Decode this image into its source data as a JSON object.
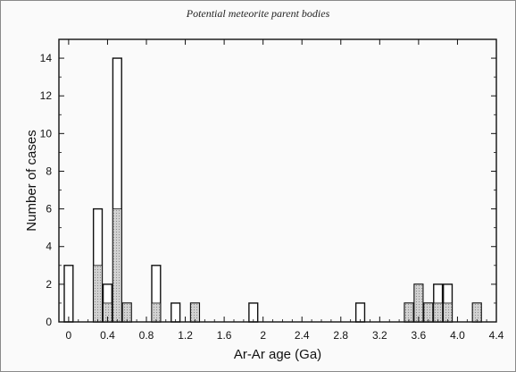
{
  "header": {
    "running_head": "Potential meteorite parent bodies"
  },
  "chart_data": {
    "type": "bar",
    "title": "",
    "xlabel": "Ar-Ar age (Ga)",
    "ylabel": "Number of cases",
    "xlim": [
      -0.1,
      4.4
    ],
    "ylim": [
      0,
      15
    ],
    "bin_width": 0.1,
    "x_ticks": [
      "0",
      "0.4",
      "0.8",
      "1.2",
      "1.6",
      "2",
      "2.4",
      "2.8",
      "3.2",
      "3.6",
      "4.0",
      "4.4"
    ],
    "x_tick_values": [
      0,
      0.4,
      0.8,
      1.2,
      1.6,
      2.0,
      2.4,
      2.8,
      3.2,
      3.6,
      4.0,
      4.4
    ],
    "y_ticks": [
      0,
      2,
      4,
      6,
      8,
      10,
      12,
      14
    ],
    "grid": false,
    "series": [
      {
        "fill": "#ffffff",
        "x": [
          0.0,
          0.3,
          0.4,
          0.5,
          0.6,
          0.9,
          1.1,
          1.3,
          1.9,
          3.0,
          3.5,
          3.6,
          3.7,
          3.8,
          3.9,
          4.2
        ],
        "values": [
          3,
          6,
          2,
          14,
          1,
          3,
          1,
          1,
          1,
          1,
          1,
          2,
          1,
          2,
          2,
          1
        ]
      },
      {
        "fill": "#cfcfcf",
        "x": [
          0.3,
          0.4,
          0.5,
          0.6,
          0.9,
          1.3,
          3.5,
          3.6,
          3.7,
          3.8,
          3.9,
          4.2
        ],
        "values": [
          3,
          1,
          6,
          1,
          1,
          1,
          1,
          2,
          1,
          1,
          1,
          1
        ]
      }
    ]
  }
}
